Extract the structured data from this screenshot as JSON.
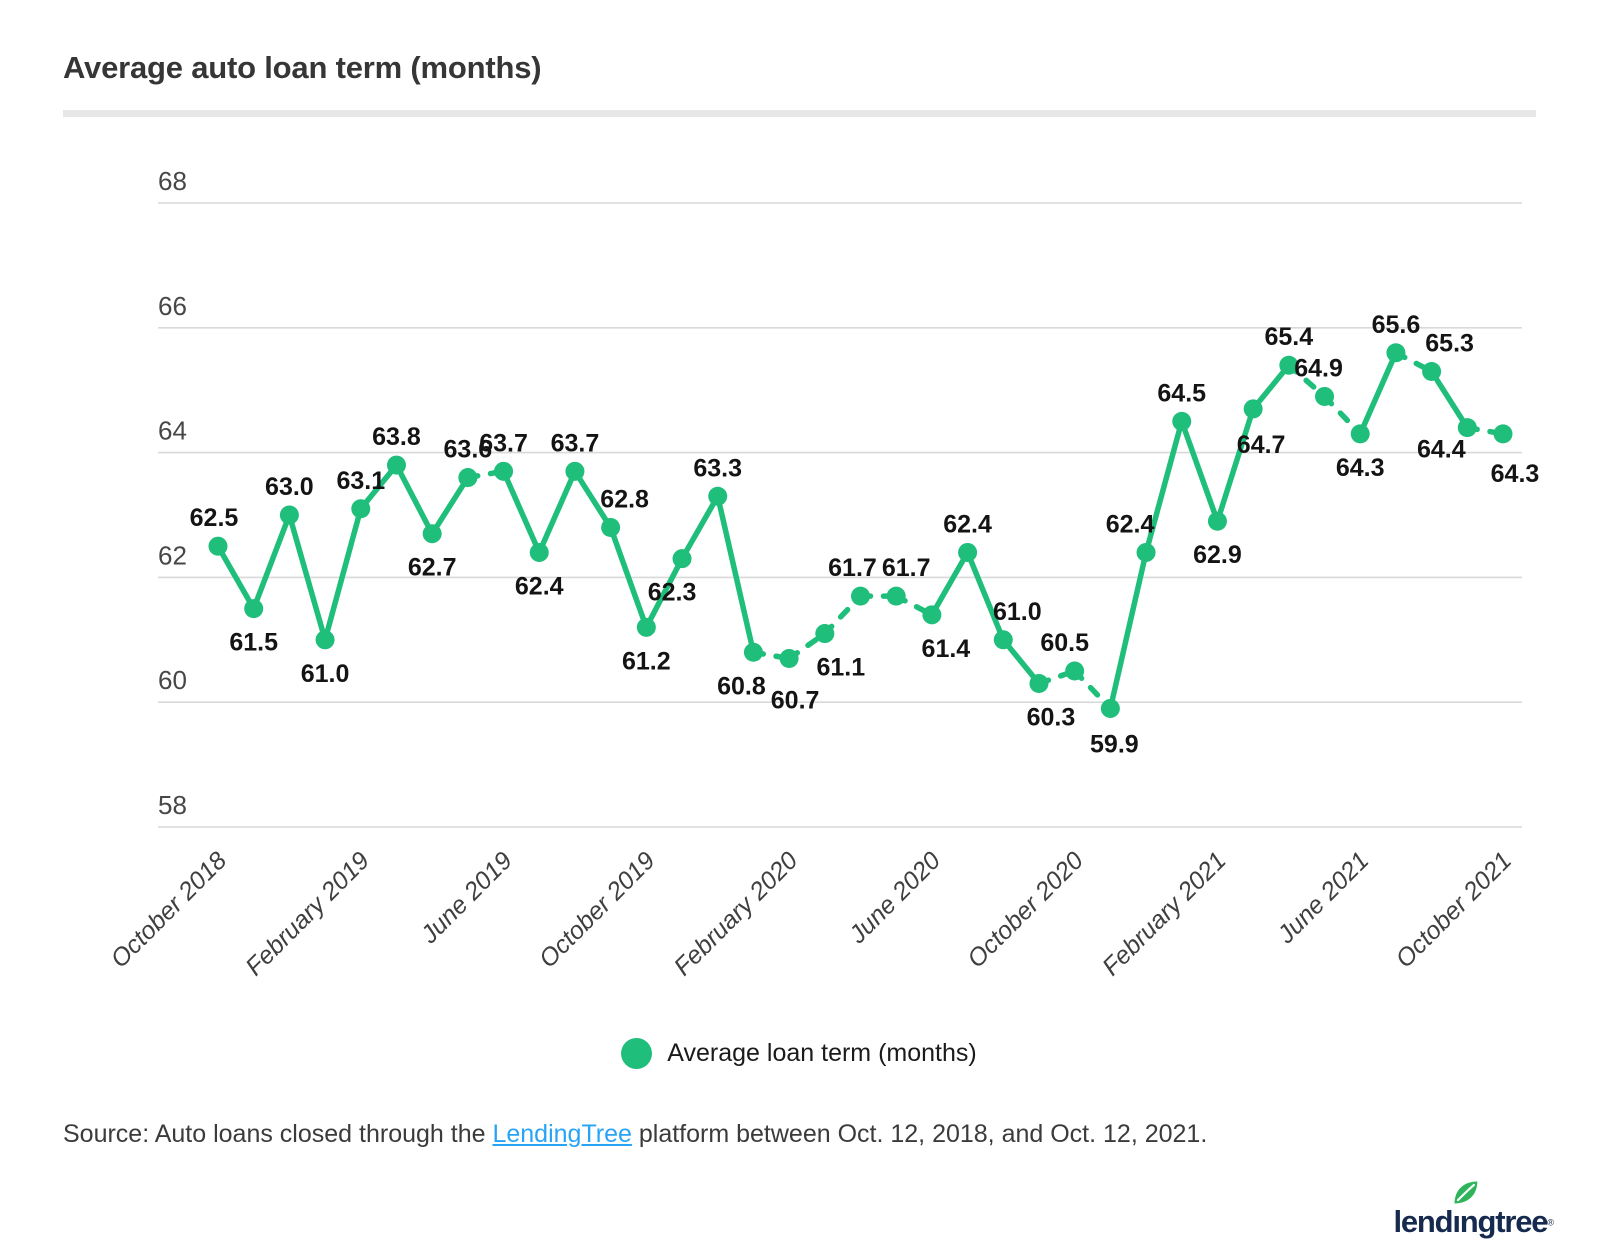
{
  "header": {
    "title": "Average auto loan term (months)"
  },
  "chart_data": {
    "type": "line",
    "title": "Average auto loan term (months)",
    "x": [
      "October 2018",
      "November 2018",
      "December 2018",
      "January 2019",
      "February 2019",
      "March 2019",
      "April 2019",
      "May 2019",
      "June 2019",
      "July 2019",
      "August 2019",
      "September 2019",
      "October 2019",
      "November 2019",
      "December 2019",
      "January 2020",
      "February 2020",
      "March 2020",
      "April 2020",
      "May 2020",
      "June 2020",
      "July 2020",
      "August 2020",
      "September 2020",
      "October 2020",
      "November 2020",
      "December 2020",
      "January 2021",
      "February 2021",
      "March 2021",
      "April 2021",
      "May 2021",
      "June 2021",
      "July 2021",
      "August 2021",
      "September 2021",
      "October 2021"
    ],
    "series": [
      {
        "name": "Average loan term (months)",
        "values": [
          62.5,
          61.5,
          63.0,
          61.0,
          63.1,
          63.8,
          62.7,
          63.6,
          63.7,
          62.4,
          63.7,
          62.8,
          61.2,
          62.3,
          63.3,
          60.8,
          60.7,
          61.1,
          61.7,
          61.7,
          61.4,
          62.4,
          61.0,
          60.3,
          60.5,
          59.9,
          62.4,
          64.5,
          62.9,
          64.7,
          65.4,
          64.9,
          64.3,
          65.6,
          65.3,
          64.4,
          64.3
        ]
      }
    ],
    "point_label_side": [
      "above",
      "below",
      "above",
      "below",
      "above",
      "above",
      "below",
      "above",
      "above",
      "below",
      "above",
      "above",
      "below",
      "below",
      "above",
      "below",
      "below",
      "below",
      "above",
      "above",
      "below",
      "above",
      "above",
      "below",
      "above",
      "below",
      "above",
      "above",
      "below",
      "below",
      "above",
      "above",
      "below",
      "above",
      "above",
      "below",
      "below"
    ],
    "dashed_segment_start_indices": [
      7,
      15,
      16,
      17,
      18,
      19,
      23,
      24,
      30,
      31,
      33,
      35
    ],
    "y_ticks": [
      68,
      66,
      64,
      62,
      60,
      58
    ],
    "ylim": [
      58,
      68
    ],
    "x_tick_indices": [
      0,
      4,
      8,
      12,
      16,
      20,
      24,
      28,
      32,
      36
    ],
    "x_tick_labels": [
      "October 2018",
      "February 2019",
      "June 2019",
      "October 2019",
      "February 2020",
      "June 2020",
      "October 2020",
      "February 2021",
      "June 2021",
      "October 2021"
    ],
    "grid": true,
    "legend_position": "bottom-center",
    "line_color": "#1fbe7b",
    "marker_color": "#1fbe7b",
    "gridline_color": "#d9d9d9",
    "data_label_color": "#141414",
    "axis_label_color": "#474747"
  },
  "legend": {
    "label": "Average loan term (months)"
  },
  "source": {
    "prefix": "Source: Auto loans closed through the ",
    "link_text": "LendingTree",
    "suffix": " platform between Oct. 12, 2018, and Oct. 12, 2021."
  },
  "logo": {
    "word": "lendıngtree",
    "mark": "®"
  }
}
